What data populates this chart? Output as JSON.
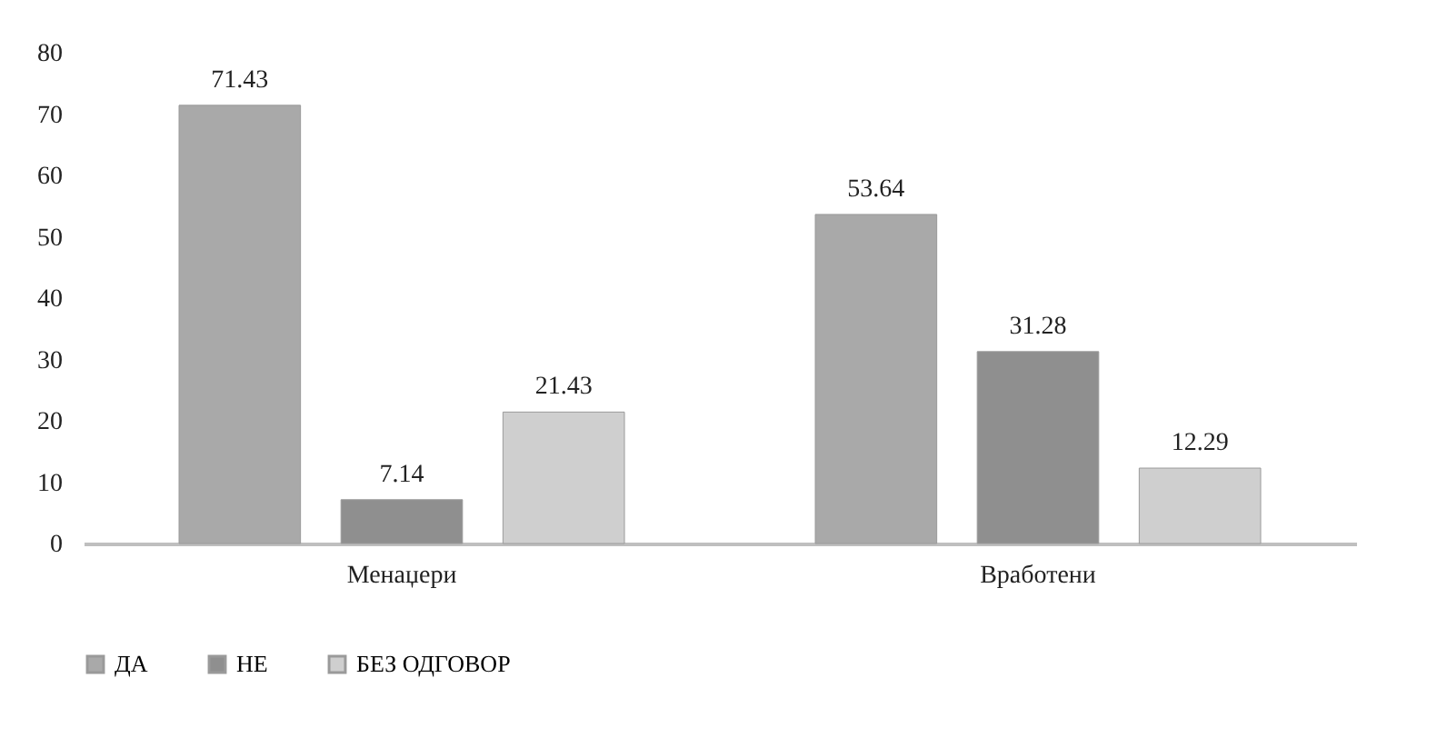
{
  "chart_data": {
    "type": "bar",
    "categories": [
      "Менаџери",
      "Вработени"
    ],
    "series": [
      {
        "name": "ДА",
        "color": "#a9a9a9",
        "values": [
          71.43,
          53.64
        ]
      },
      {
        "name": "НЕ",
        "color": "#8f8f8f",
        "values": [
          7.14,
          31.28
        ]
      },
      {
        "name": "БЕЗ ОДГОВОР",
        "color": "#cfcfcf",
        "values": [
          21.43,
          12.29
        ]
      }
    ],
    "ylim": [
      0,
      80
    ],
    "yticks": [
      0,
      10,
      20,
      30,
      40,
      50,
      60,
      70,
      80
    ],
    "data_labels": true,
    "grid": false,
    "legend": "bottom"
  }
}
